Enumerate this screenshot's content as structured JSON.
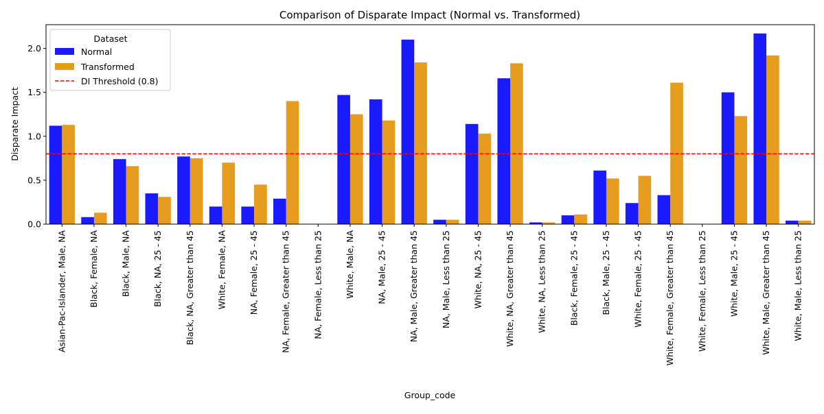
{
  "chart_data": {
    "type": "bar",
    "title": "Comparison of Disparate Impact (Normal vs. Transformed)",
    "xlabel": "Group_code",
    "ylabel": "Disparate Impact",
    "ylim": [
      0,
      2.27
    ],
    "yticks": [
      0.0,
      0.5,
      1.0,
      1.5,
      2.0
    ],
    "ytick_labels": [
      "0.0",
      "0.5",
      "1.0",
      "1.5",
      "2.0"
    ],
    "grid": false,
    "legend": {
      "title": "Dataset",
      "placement": "top-left",
      "entries": [
        "Normal",
        "Transformed",
        "DI Threshold (0.8)"
      ]
    },
    "categories": [
      "Asian-Pac-Islander,  Male, NA",
      "Black,  Female, NA",
      "Black,  Male, NA",
      "Black, NA, 25 - 45",
      "Black, NA, Greater than 45",
      "White,  Female, NA",
      "NA,  Female, 25 - 45",
      "NA,  Female, Greater than 45",
      "NA,  Female, Less than 25",
      "White,  Male, NA",
      "NA,  Male, 25 - 45",
      "NA,  Male, Greater than 45",
      "NA,  Male, Less than 25",
      "White, NA, 25 - 45",
      "White, NA, Greater than 45",
      "White, NA, Less than 25",
      "Black,  Female, 25 - 45",
      "Black,  Male, 25 - 45",
      "White,  Female, 25 - 45",
      "White,  Female, Greater than 45",
      "White,  Female, Less than 25",
      "White,  Male, 25 - 45",
      "White,  Male, Greater than 45",
      "White,  Male, Less than 25"
    ],
    "series": [
      {
        "name": "Normal",
        "color": "#1a1aff",
        "values": [
          1.12,
          0.08,
          0.74,
          0.35,
          0.77,
          0.2,
          0.2,
          0.29,
          0.0,
          1.47,
          1.42,
          2.1,
          0.05,
          1.14,
          1.66,
          0.02,
          0.1,
          0.61,
          0.24,
          0.33,
          0.0,
          1.5,
          2.17,
          0.04
        ]
      },
      {
        "name": "Transformed",
        "color": "#e69c1e",
        "values": [
          1.13,
          0.13,
          0.66,
          0.31,
          0.75,
          0.7,
          0.45,
          1.4,
          0.0,
          1.25,
          1.18,
          1.84,
          0.05,
          1.03,
          1.83,
          0.02,
          0.11,
          0.52,
          0.55,
          1.61,
          0.0,
          1.23,
          1.92,
          0.04
        ]
      }
    ],
    "threshold": {
      "label": "DI Threshold (0.8)",
      "value": 0.8,
      "color": "#ff0000",
      "style": "dashed"
    }
  }
}
